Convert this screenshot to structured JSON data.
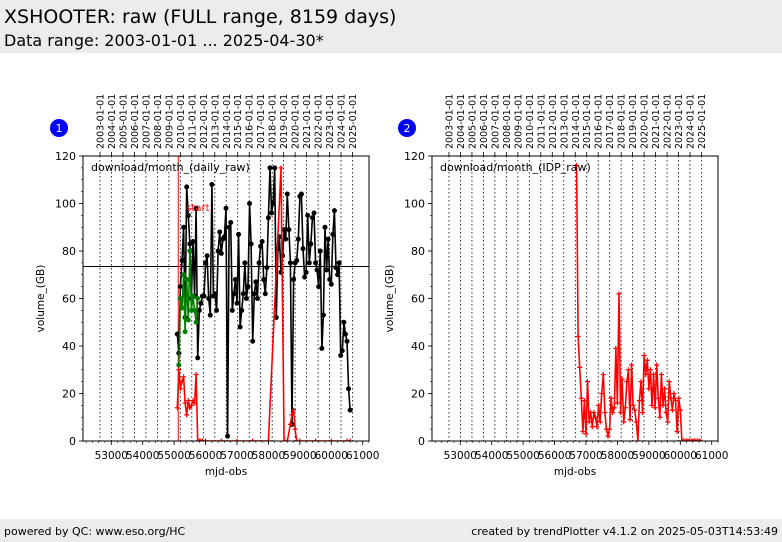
{
  "header": {
    "title": "XSHOOTER: raw (FULL range, 8159 days)",
    "subtitle": "Data range: 2003-01-01 ... 2025-04-30*"
  },
  "footer": {
    "left": "powered by QC: www.eso.org/HC",
    "right": "created by trendPlotter v4.1.2 on 2025-05-03T14:53:49"
  },
  "colors": {
    "black_series": "#000000",
    "green_series": "#008000",
    "red_series": "#ff0000",
    "badge": "#0000ff",
    "header_bg": "#ececec"
  },
  "chart_data": [
    {
      "type": "line",
      "badge": "1",
      "panel_label": "download/month_(daily_raw)",
      "annotation": "start",
      "xlabel": "mjd-obs",
      "ylabel": "volume_(GB)",
      "xlim": [
        52100,
        61200
      ],
      "ylim": [
        0,
        120
      ],
      "xticks": [
        53000,
        54000,
        55000,
        56000,
        57000,
        58000,
        59000,
        60000,
        61000
      ],
      "yticks": [
        0,
        20,
        40,
        60,
        80,
        100,
        120
      ],
      "date_ticks": [
        "2003-01-01",
        "2004-01-01",
        "2005-01-01",
        "2006-01-01",
        "2007-01-01",
        "2008-01-01",
        "2009-01-01",
        "2010-01-01",
        "2011-01-01",
        "2012-01-01",
        "2013-01-01",
        "2014-01-01",
        "2015-01-01",
        "2016-01-01",
        "2017-01-01",
        "2018-01-01",
        "2019-01-01",
        "2020-01-01",
        "2021-01-01",
        "2022-01-01",
        "2023-01-01",
        "2024-01-01",
        "2025-01-01"
      ],
      "date_tick_mjd": [
        52640,
        53005,
        53371,
        53736,
        54101,
        54466,
        54832,
        55197,
        55562,
        55927,
        56293,
        56658,
        57023,
        57388,
        57754,
        58119,
        58484,
        58849,
        59215,
        59580,
        59945,
        60310,
        60676
      ],
      "hline": 73.5,
      "vline": 55130,
      "series": [
        {
          "color": "#000000",
          "x": [
            55100,
            55150,
            55200,
            55250,
            55300,
            55350,
            55400,
            55450,
            55500,
            55550,
            55600,
            55650,
            55700,
            55750,
            55800,
            55850,
            55900,
            55950,
            56000,
            56050,
            56100,
            56150,
            56200,
            56250,
            56300,
            56350,
            56400,
            56450,
            56500,
            56550,
            56600,
            56650,
            56700,
            56750,
            56800,
            56850,
            56900,
            56950,
            57000,
            57050,
            57100,
            57150,
            57200,
            57250,
            57300,
            57350,
            57400,
            57450,
            57500,
            57550,
            57600,
            57650,
            57700,
            57750,
            57800,
            57850,
            57900,
            57950,
            58000,
            58050,
            58100,
            58150,
            58200,
            58250,
            58300,
            58350,
            58400,
            58450,
            58500,
            58550,
            58600,
            58650,
            58700,
            58750,
            58800,
            58850,
            58900,
            58950,
            59000,
            59050,
            59100,
            59150,
            59200,
            59250,
            59300,
            59350,
            59400,
            59450,
            59500,
            59550,
            59600,
            59650,
            59700,
            59750,
            59800,
            59850,
            59900,
            59950,
            60000,
            60050,
            60100,
            60150,
            60200,
            60250,
            60300,
            60350,
            60400,
            60450,
            60500,
            60550,
            60600
          ],
          "y": [
            45,
            37,
            65,
            76,
            90,
            52,
            107,
            95,
            83,
            60,
            84,
            61,
            98,
            35,
            55,
            58,
            61,
            61,
            75,
            78,
            60,
            53,
            108,
            61,
            62,
            55,
            80,
            88,
            79,
            85,
            86,
            98,
            2,
            90,
            92,
            55,
            62,
            68,
            58,
            87,
            48,
            55,
            62,
            75,
            60,
            65,
            100,
            83,
            42,
            62,
            67,
            60,
            75,
            82,
            84,
            68,
            62,
            73,
            94,
            115,
            96,
            100,
            115,
            52,
            81,
            86,
            71,
            78,
            89,
            85,
            104,
            89,
            75,
            7,
            68,
            75,
            76,
            85,
            103,
            104,
            81,
            69,
            71,
            95,
            75,
            83,
            94,
            96,
            75,
            72,
            65,
            80,
            39,
            53,
            90,
            72,
            85,
            68,
            66,
            87,
            97,
            73,
            70,
            75,
            36,
            38,
            50,
            45,
            42,
            22,
            13
          ]
        },
        {
          "color": "#008000",
          "x": [
            55150,
            55200,
            55250,
            55300,
            55350,
            55400,
            55450,
            55500,
            55550,
            55600,
            55650,
            55700,
            55750
          ],
          "y": [
            32,
            60,
            56,
            70,
            46,
            68,
            51,
            80,
            55,
            61,
            55,
            50,
            60
          ]
        },
        {
          "color": "#ff0000",
          "x": [
            55100,
            55150,
            55200,
            55250,
            55300,
            55350,
            55400,
            55450,
            55500,
            55550,
            55600,
            55650,
            55700,
            55750,
            55800,
            55850,
            55900,
            56000,
            56500,
            57000,
            57500,
            58000,
            58400,
            58500,
            58600,
            58700,
            58750,
            58800,
            58850,
            58900,
            59000,
            59500,
            60000,
            60500,
            60600
          ],
          "y": [
            14,
            30,
            22,
            25,
            27,
            16,
            11,
            17,
            14,
            15,
            17,
            16,
            28,
            0,
            0,
            0,
            0,
            0,
            0,
            0,
            0,
            0,
            115,
            0,
            0,
            7,
            11,
            13,
            5,
            0,
            0,
            0,
            0,
            0,
            0
          ]
        }
      ]
    },
    {
      "type": "line",
      "badge": "2",
      "panel_label": "download/month_(IDP_raw)",
      "xlabel": "mjd-obs",
      "ylabel": "volume_(GB)",
      "xlim": [
        52100,
        61200
      ],
      "ylim": [
        0,
        120
      ],
      "xticks": [
        53000,
        54000,
        55000,
        56000,
        57000,
        58000,
        59000,
        60000,
        61000
      ],
      "yticks": [
        0,
        20,
        40,
        60,
        80,
        100,
        120
      ],
      "date_ticks": [
        "2003-01-01",
        "2004-01-01",
        "2005-01-01",
        "2006-01-01",
        "2007-01-01",
        "2008-01-01",
        "2009-01-01",
        "2010-01-01",
        "2011-01-01",
        "2012-01-01",
        "2013-01-01",
        "2014-01-01",
        "2015-01-01",
        "2016-01-01",
        "2017-01-01",
        "2018-01-01",
        "2019-01-01",
        "2020-01-01",
        "2021-01-01",
        "2022-01-01",
        "2023-01-01",
        "2024-01-01",
        "2025-01-01"
      ],
      "date_tick_mjd": [
        52640,
        53005,
        53371,
        53736,
        54101,
        54466,
        54832,
        55197,
        55562,
        55927,
        56293,
        56658,
        57023,
        57388,
        57754,
        58119,
        58484,
        58849,
        59215,
        59580,
        59945,
        60310,
        60676
      ],
      "series": [
        {
          "color": "#ff0000",
          "x": [
            56700,
            56750,
            56800,
            56850,
            56900,
            56950,
            57000,
            57050,
            57100,
            57150,
            57200,
            57250,
            57300,
            57350,
            57400,
            57450,
            57500,
            57550,
            57600,
            57650,
            57700,
            57750,
            57800,
            57850,
            57900,
            57950,
            58000,
            58050,
            58100,
            58150,
            58200,
            58250,
            58300,
            58350,
            58400,
            58450,
            58500,
            58550,
            58600,
            58650,
            58700,
            58750,
            58800,
            58850,
            58900,
            58950,
            59000,
            59050,
            59100,
            59150,
            59200,
            59250,
            59300,
            59350,
            59400,
            59450,
            59500,
            59550,
            59600,
            59650,
            59700,
            59750,
            59800,
            59850,
            59900,
            59950,
            60000,
            60050,
            60100,
            60150,
            60200,
            60250,
            60300,
            60350,
            60400,
            60450,
            60500,
            60550,
            60600,
            60650
          ],
          "y": [
            116,
            44,
            31,
            18,
            4,
            17,
            3,
            25,
            8,
            12,
            6,
            12,
            10,
            6,
            15,
            8,
            20,
            28,
            12,
            5,
            2,
            5,
            18,
            12,
            14,
            39,
            16,
            62,
            12,
            26,
            8,
            14,
            25,
            30,
            9,
            32,
            15,
            13,
            8,
            0,
            17,
            25,
            12,
            36,
            28,
            34,
            22,
            30,
            15,
            28,
            14,
            32,
            18,
            10,
            28,
            15,
            22,
            12,
            8,
            25,
            18,
            13,
            20,
            17,
            4,
            18,
            13,
            0,
            0,
            0,
            0,
            0,
            0,
            0,
            0,
            0,
            0,
            0,
            0,
            0
          ]
        }
      ]
    }
  ]
}
